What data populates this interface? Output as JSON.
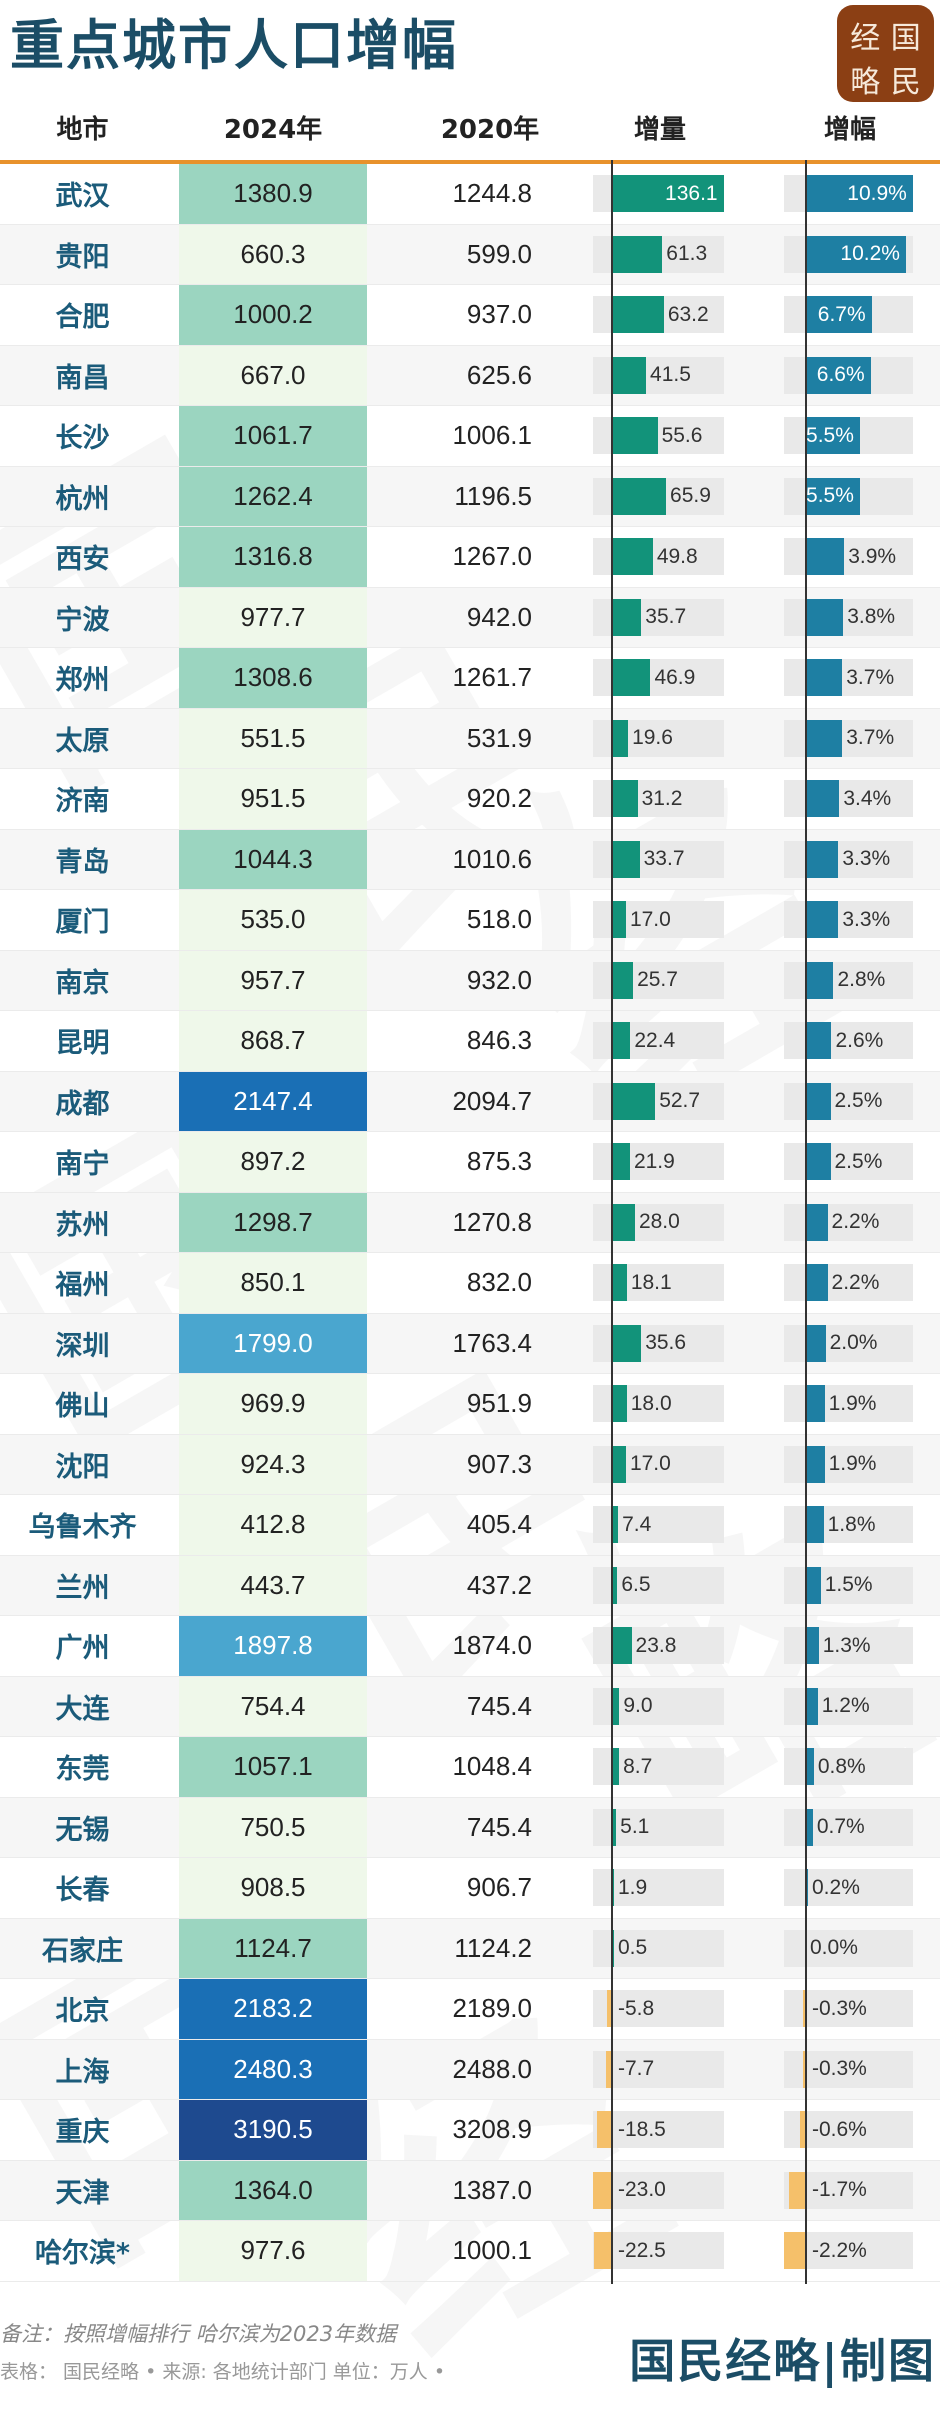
{
  "title": "重点城市人口增幅",
  "logo": {
    "chars": [
      "经",
      "国",
      "略",
      "民"
    ],
    "color": "#8b3f14"
  },
  "header": {
    "city": "地市",
    "y2024": "2024年",
    "y2020": "2020年",
    "increase": "增量",
    "growth": "增幅"
  },
  "colors": {
    "title": "#1b4d66",
    "header_line": "#e8922c",
    "increase_positive": "#12937a",
    "growth_positive": "#1e7fa3",
    "negative": "#f5c06a",
    "track": "#e9e9e9",
    "pop_scale": {
      "lt_1000": "#eff8ea",
      "1000_1500": "#9bd5c0",
      "1500_2000": "#4aa6cf",
      "2000_3000": "#1a6fb5",
      "gt_3000": "#1e4a8f"
    }
  },
  "rows": [
    {
      "city": "武汉",
      "y2024": "1380.9",
      "y2020": "1244.8",
      "inc": "136.1",
      "pct": "10.9%"
    },
    {
      "city": "贵阳",
      "y2024": "660.3",
      "y2020": "599.0",
      "inc": "61.3",
      "pct": "10.2%"
    },
    {
      "city": "合肥",
      "y2024": "1000.2",
      "y2020": "937.0",
      "inc": "63.2",
      "pct": "6.7%"
    },
    {
      "city": "南昌",
      "y2024": "667.0",
      "y2020": "625.6",
      "inc": "41.5",
      "pct": "6.6%"
    },
    {
      "city": "长沙",
      "y2024": "1061.7",
      "y2020": "1006.1",
      "inc": "55.6",
      "pct": "5.5%"
    },
    {
      "city": "杭州",
      "y2024": "1262.4",
      "y2020": "1196.5",
      "inc": "65.9",
      "pct": "5.5%"
    },
    {
      "city": "西安",
      "y2024": "1316.8",
      "y2020": "1267.0",
      "inc": "49.8",
      "pct": "3.9%"
    },
    {
      "city": "宁波",
      "y2024": "977.7",
      "y2020": "942.0",
      "inc": "35.7",
      "pct": "3.8%"
    },
    {
      "city": "郑州",
      "y2024": "1308.6",
      "y2020": "1261.7",
      "inc": "46.9",
      "pct": "3.7%"
    },
    {
      "city": "太原",
      "y2024": "551.5",
      "y2020": "531.9",
      "inc": "19.6",
      "pct": "3.7%"
    },
    {
      "city": "济南",
      "y2024": "951.5",
      "y2020": "920.2",
      "inc": "31.2",
      "pct": "3.4%"
    },
    {
      "city": "青岛",
      "y2024": "1044.3",
      "y2020": "1010.6",
      "inc": "33.7",
      "pct": "3.3%"
    },
    {
      "city": "厦门",
      "y2024": "535.0",
      "y2020": "518.0",
      "inc": "17.0",
      "pct": "3.3%"
    },
    {
      "city": "南京",
      "y2024": "957.7",
      "y2020": "932.0",
      "inc": "25.7",
      "pct": "2.8%"
    },
    {
      "city": "昆明",
      "y2024": "868.7",
      "y2020": "846.3",
      "inc": "22.4",
      "pct": "2.6%"
    },
    {
      "city": "成都",
      "y2024": "2147.4",
      "y2020": "2094.7",
      "inc": "52.7",
      "pct": "2.5%"
    },
    {
      "city": "南宁",
      "y2024": "897.2",
      "y2020": "875.3",
      "inc": "21.9",
      "pct": "2.5%"
    },
    {
      "city": "苏州",
      "y2024": "1298.7",
      "y2020": "1270.8",
      "inc": "28.0",
      "pct": "2.2%"
    },
    {
      "city": "福州",
      "y2024": "850.1",
      "y2020": "832.0",
      "inc": "18.1",
      "pct": "2.2%"
    },
    {
      "city": "深圳",
      "y2024": "1799.0",
      "y2020": "1763.4",
      "inc": "35.6",
      "pct": "2.0%"
    },
    {
      "city": "佛山",
      "y2024": "969.9",
      "y2020": "951.9",
      "inc": "18.0",
      "pct": "1.9%"
    },
    {
      "city": "沈阳",
      "y2024": "924.3",
      "y2020": "907.3",
      "inc": "17.0",
      "pct": "1.9%"
    },
    {
      "city": "乌鲁木齐",
      "y2024": "412.8",
      "y2020": "405.4",
      "inc": "7.4",
      "pct": "1.8%"
    },
    {
      "city": "兰州",
      "y2024": "443.7",
      "y2020": "437.2",
      "inc": "6.5",
      "pct": "1.5%"
    },
    {
      "city": "广州",
      "y2024": "1897.8",
      "y2020": "1874.0",
      "inc": "23.8",
      "pct": "1.3%"
    },
    {
      "city": "大连",
      "y2024": "754.4",
      "y2020": "745.4",
      "inc": "9.0",
      "pct": "1.2%"
    },
    {
      "city": "东莞",
      "y2024": "1057.1",
      "y2020": "1048.4",
      "inc": "8.7",
      "pct": "0.8%"
    },
    {
      "city": "无锡",
      "y2024": "750.5",
      "y2020": "745.4",
      "inc": "5.1",
      "pct": "0.7%"
    },
    {
      "city": "长春",
      "y2024": "908.5",
      "y2020": "906.7",
      "inc": "1.9",
      "pct": "0.2%"
    },
    {
      "city": "石家庄",
      "y2024": "1124.7",
      "y2020": "1124.2",
      "inc": "0.5",
      "pct": "0.0%"
    },
    {
      "city": "北京",
      "y2024": "2183.2",
      "y2020": "2189.0",
      "inc": "-5.8",
      "pct": "-0.3%"
    },
    {
      "city": "上海",
      "y2024": "2480.3",
      "y2020": "2488.0",
      "inc": "-7.7",
      "pct": "-0.3%"
    },
    {
      "city": "重庆",
      "y2024": "3190.5",
      "y2020": "3208.9",
      "inc": "-18.5",
      "pct": "-0.6%"
    },
    {
      "city": "天津",
      "y2024": "1364.0",
      "y2020": "1387.0",
      "inc": "-23.0",
      "pct": "-1.7%"
    },
    {
      "city": "哈尔滨*",
      "y2024": "977.6",
      "y2020": "1000.1",
      "inc": "-22.5",
      "pct": "-2.2%"
    }
  ],
  "footer": {
    "note": "备注：按照增幅排行 哈尔滨为2023年数据",
    "source": "表格：  国民经略 • 来源: 各地统计部门 单位：万人 •",
    "brand": "国民经略|制图"
  },
  "watermark": [
    "国",
    "民",
    "经",
    "略"
  ],
  "chart_data": {
    "type": "table",
    "title": "重点城市人口增幅",
    "columns": [
      "地市",
      "2024年",
      "2020年",
      "增量",
      "增幅"
    ],
    "unit": "万人",
    "categories": [
      "武汉",
      "贵阳",
      "合肥",
      "南昌",
      "长沙",
      "杭州",
      "西安",
      "宁波",
      "郑州",
      "太原",
      "济南",
      "青岛",
      "厦门",
      "南京",
      "昆明",
      "成都",
      "南宁",
      "苏州",
      "福州",
      "深圳",
      "佛山",
      "沈阳",
      "乌鲁木齐",
      "兰州",
      "广州",
      "大连",
      "东莞",
      "无锡",
      "长春",
      "石家庄",
      "北京",
      "上海",
      "重庆",
      "天津",
      "哈尔滨*"
    ],
    "series": [
      {
        "name": "2024年",
        "values": [
          1380.9,
          660.3,
          1000.2,
          667.0,
          1061.7,
          1262.4,
          1316.8,
          977.7,
          1308.6,
          551.5,
          951.5,
          1044.3,
          535.0,
          957.7,
          868.7,
          2147.4,
          897.2,
          1298.7,
          850.1,
          1799.0,
          969.9,
          924.3,
          412.8,
          443.7,
          1897.8,
          754.4,
          1057.1,
          750.5,
          908.5,
          1124.7,
          2183.2,
          2480.3,
          3190.5,
          1364.0,
          977.6
        ]
      },
      {
        "name": "2020年",
        "values": [
          1244.8,
          599.0,
          937.0,
          625.6,
          1006.1,
          1196.5,
          1267.0,
          942.0,
          1261.7,
          531.9,
          920.2,
          1010.6,
          518.0,
          932.0,
          846.3,
          2094.7,
          875.3,
          1270.8,
          832.0,
          1763.4,
          951.9,
          907.3,
          405.4,
          437.2,
          1874.0,
          745.4,
          1048.4,
          745.4,
          906.7,
          1124.2,
          2189.0,
          2488.0,
          3208.9,
          1387.0,
          1000.1
        ]
      },
      {
        "name": "增量",
        "values": [
          136.1,
          61.3,
          63.2,
          41.5,
          55.6,
          65.9,
          49.8,
          35.7,
          46.9,
          19.6,
          31.2,
          33.7,
          17.0,
          25.7,
          22.4,
          52.7,
          21.9,
          28.0,
          18.1,
          35.6,
          18.0,
          17.0,
          7.4,
          6.5,
          23.8,
          9.0,
          8.7,
          5.1,
          1.9,
          0.5,
          -5.8,
          -7.7,
          -18.5,
          -23.0,
          -22.5
        ]
      },
      {
        "name": "增幅(%)",
        "values": [
          10.9,
          10.2,
          6.7,
          6.6,
          5.5,
          5.5,
          3.9,
          3.8,
          3.7,
          3.7,
          3.4,
          3.3,
          3.3,
          2.8,
          2.6,
          2.5,
          2.5,
          2.2,
          2.2,
          2.0,
          1.9,
          1.9,
          1.8,
          1.5,
          1.3,
          1.2,
          0.8,
          0.7,
          0.2,
          0.0,
          -0.3,
          -0.3,
          -0.6,
          -1.7,
          -2.2
        ]
      }
    ],
    "annotations": [
      "备注：按照增幅排行 哈尔滨为2023年数据",
      "来源: 各地统计部门 单位：万人"
    ]
  }
}
